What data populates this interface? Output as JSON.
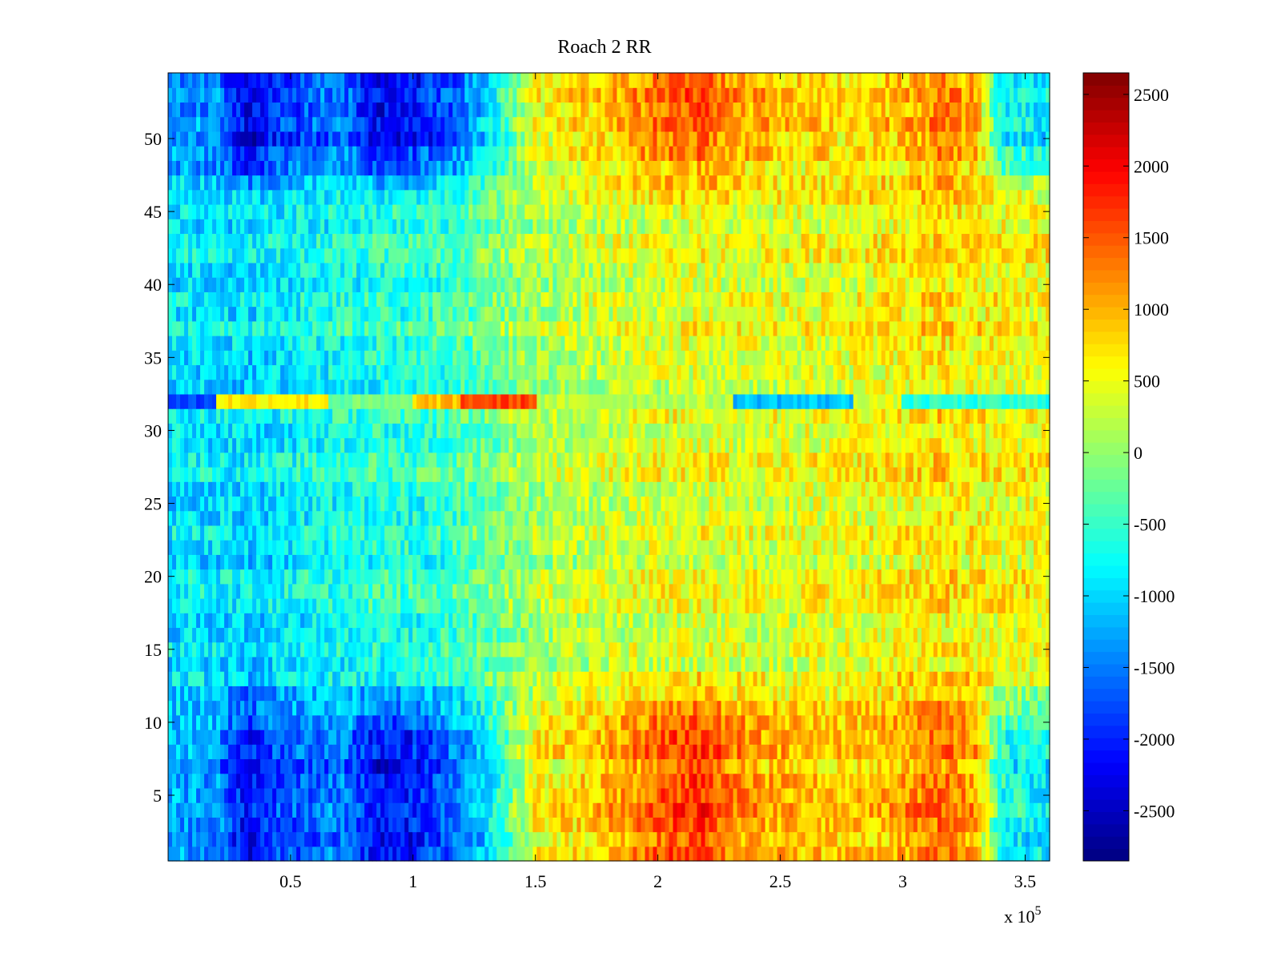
{
  "chart_data": {
    "type": "heatmap",
    "title": "Roach 2 RR",
    "xlabel": "",
    "ylabel": "",
    "x_multiplier_label": "x 10",
    "x_multiplier_exponent": "5",
    "xlim": [
      0,
      3.6
    ],
    "ylim": [
      0.5,
      54.5
    ],
    "x_ticks": [
      0.5,
      1,
      1.5,
      2,
      2.5,
      3,
      3.5
    ],
    "x_tick_labels": [
      "0.5",
      "1",
      "1.5",
      "2",
      "2.5",
      "3",
      "3.5"
    ],
    "y_ticks": [
      5,
      10,
      15,
      20,
      25,
      30,
      35,
      40,
      45,
      50
    ],
    "y_tick_labels": [
      "5",
      "10",
      "15",
      "20",
      "25",
      "30",
      "35",
      "40",
      "45",
      "50"
    ],
    "rows": 54,
    "colormap": "jet",
    "colorbar": {
      "range": [
        -2850,
        2650
      ],
      "ticks": [
        -2500,
        -2000,
        -1500,
        -1000,
        -500,
        0,
        500,
        1000,
        1500,
        2000,
        2500
      ],
      "tick_labels": [
        "-2500",
        "-2000",
        "-1500",
        "-1000",
        "-500",
        "0",
        "500",
        "1000",
        "1500",
        "2000",
        "2500"
      ]
    },
    "column_profile_x": [
      0,
      0.2,
      0.32,
      0.42,
      0.7,
      0.85,
      1.0,
      1.2,
      1.3,
      1.5,
      1.8,
      2.0,
      2.2,
      2.3,
      2.5,
      2.8,
      3.0,
      3.15,
      3.3,
      3.4,
      3.6
    ],
    "edge_row_profile": [
      -1300,
      -1400,
      -2300,
      -1900,
      -1500,
      -2200,
      -2100,
      -1500,
      -1000,
      500,
      900,
      1400,
      1600,
      1200,
      900,
      800,
      1000,
      1300,
      1000,
      -700,
      -900
    ],
    "middle_row_profile": [
      -900,
      -900,
      -1000,
      -900,
      -700,
      -600,
      -600,
      -400,
      -200,
      100,
      300,
      400,
      450,
      400,
      400,
      500,
      600,
      700,
      600,
      550,
      550
    ],
    "edge_band_rows": [
      [
        1,
        9
      ],
      [
        50,
        54
      ]
    ],
    "anomaly_row": {
      "row": 32,
      "segments": [
        {
          "x": [
            0,
            0.2
          ],
          "value": -1800
        },
        {
          "x": [
            0.2,
            0.65
          ],
          "value": 700
        },
        {
          "x": [
            0.65,
            1.0
          ],
          "value": -200
        },
        {
          "x": [
            1.0,
            1.2
          ],
          "value": 900
        },
        {
          "x": [
            1.2,
            1.5
          ],
          "value": 1600
        },
        {
          "x": [
            1.5,
            2.3
          ],
          "value": 200
        },
        {
          "x": [
            2.3,
            2.8
          ],
          "value": -1100
        },
        {
          "x": [
            2.8,
            3.0
          ],
          "value": 400
        },
        {
          "x": [
            3.0,
            3.6
          ],
          "value": -600
        }
      ]
    }
  }
}
